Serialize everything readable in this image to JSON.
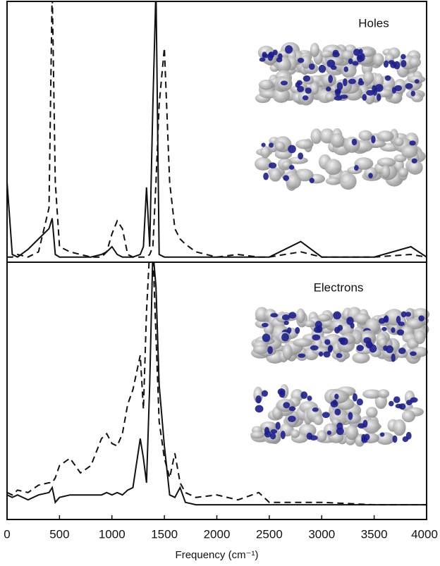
{
  "chart_data": [
    {
      "type": "line",
      "annotation": "Holes",
      "x": [
        0,
        50,
        100,
        200,
        300,
        400,
        430,
        460,
        500,
        600,
        700,
        800,
        900,
        950,
        1000,
        1050,
        1100,
        1150,
        1200,
        1270,
        1300,
        1330,
        1360,
        1390,
        1420,
        1450,
        1500,
        1550,
        1600,
        1650,
        1700,
        1800,
        2000,
        2200,
        2400,
        2500,
        2800,
        3000,
        3500,
        3850,
        4000
      ],
      "xlim": [
        0,
        4000
      ],
      "ylim": [
        -0.01,
        1
      ],
      "series": [
        {
          "color": "#111111",
          "dash": "solid",
          "values": [
            0.3,
            0.02,
            0.01,
            0.04,
            0.08,
            0.12,
            0.16,
            0.02,
            0.01,
            0.01,
            0.01,
            0.01,
            0.02,
            0.03,
            0.05,
            0.02,
            0.01,
            0.01,
            0.01,
            0.02,
            0.05,
            0.28,
            0.05,
            0.6,
            1.05,
            0.02,
            0.01,
            0.01,
            0.01,
            0.01,
            0.01,
            0.01,
            0.01,
            0.01,
            0.01,
            0.01,
            0.07,
            0.01,
            0.01,
            0.05,
            0.01
          ]
        },
        {
          "color": "#111111",
          "dash": "dashed",
          "values": [
            0.01,
            0.01,
            0.02,
            0.01,
            0.03,
            0.2,
            1.05,
            0.3,
            0.05,
            0.03,
            0.02,
            0.01,
            0.01,
            0.03,
            0.1,
            0.15,
            0.12,
            0.02,
            0.01,
            0.01,
            0.01,
            0.01,
            0.02,
            0.05,
            0.3,
            0.6,
            0.82,
            0.3,
            0.12,
            0.08,
            0.06,
            0.03,
            0.01,
            0.02,
            0.01,
            0.01,
            0.03,
            0.01,
            0.01,
            0.02,
            0.01
          ]
        }
      ]
    },
    {
      "type": "line",
      "annotation": "Electrons",
      "x": [
        0,
        50,
        100,
        200,
        300,
        400,
        430,
        460,
        500,
        600,
        700,
        800,
        900,
        950,
        1000,
        1050,
        1100,
        1150,
        1200,
        1270,
        1300,
        1330,
        1360,
        1390,
        1420,
        1450,
        1500,
        1550,
        1600,
        1650,
        1700,
        1800,
        2000,
        2200,
        2400,
        2500,
        2800,
        3000,
        3500,
        3850,
        4000
      ],
      "xlim": [
        0,
        4000
      ],
      "ylim": [
        -0.05,
        1
      ],
      "xticks": [
        0,
        500,
        1000,
        1500,
        2000,
        2500,
        3000,
        3500,
        4000
      ],
      "xlabel": "Frequency (cm⁻¹)",
      "series": [
        {
          "color": "#111111",
          "dash": "solid",
          "values": [
            0.05,
            0.04,
            0.05,
            0.03,
            0.05,
            0.06,
            0.08,
            0.02,
            0.04,
            0.05,
            0.05,
            0.05,
            0.05,
            0.06,
            0.05,
            0.06,
            0.05,
            0.07,
            0.08,
            0.28,
            0.2,
            0.1,
            0.5,
            1.05,
            0.9,
            0.5,
            0.25,
            0.05,
            0.04,
            0.08,
            0.02,
            0.01,
            0.01,
            0.01,
            0.01,
            0.01,
            0.01,
            0.01,
            0.01,
            0.01,
            0.01
          ]
        },
        {
          "color": "#111111",
          "dash": "dashed",
          "values": [
            0.06,
            0.05,
            0.07,
            0.06,
            0.09,
            0.1,
            0.1,
            0.12,
            0.17,
            0.2,
            0.14,
            0.17,
            0.28,
            0.3,
            0.26,
            0.25,
            0.3,
            0.42,
            0.48,
            0.62,
            0.4,
            0.8,
            1.05,
            1.05,
            0.7,
            0.35,
            0.2,
            0.12,
            0.22,
            0.1,
            0.06,
            0.04,
            0.05,
            0.03,
            0.06,
            0.02,
            0.02,
            0.02,
            0.01,
            0.01,
            0.01
          ]
        }
      ]
    }
  ]
}
